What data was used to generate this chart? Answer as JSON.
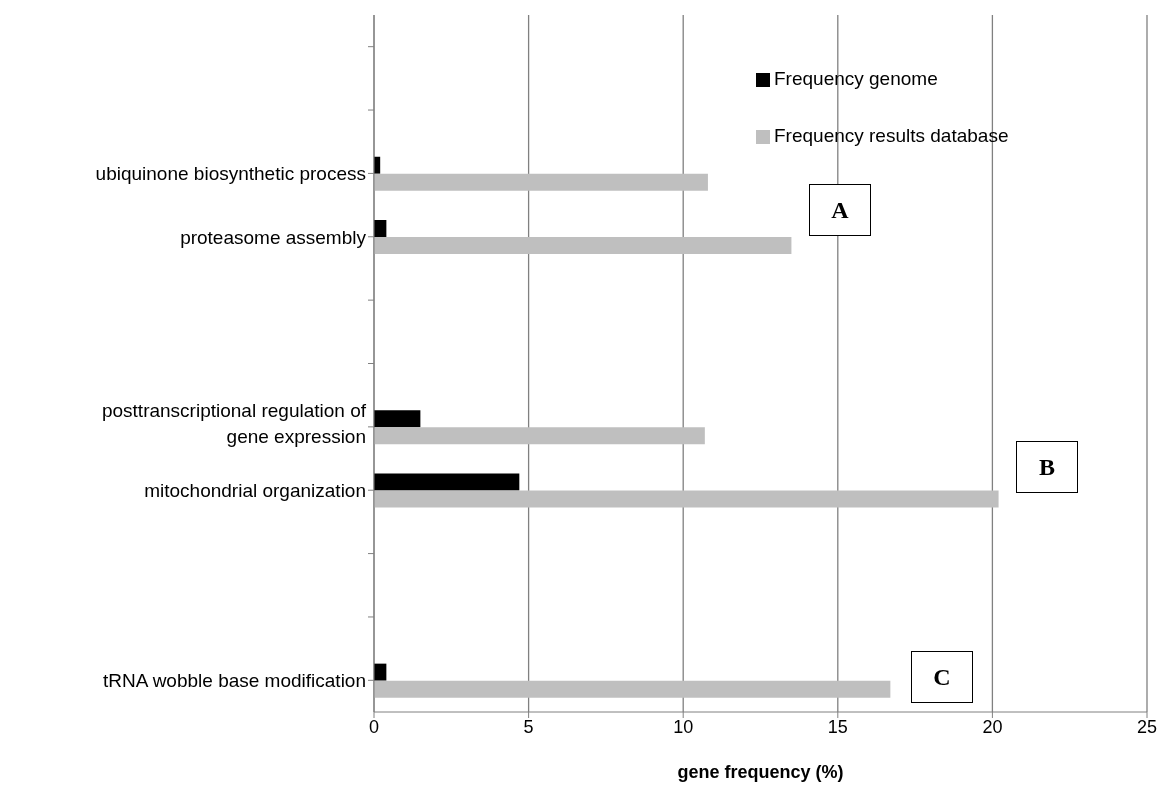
{
  "chart_data": {
    "type": "bar",
    "orientation": "horizontal",
    "xlabel": "gene frequency (%)",
    "categories": [
      null,
      null,
      "ubiquinone biosynthetic process",
      "proteasome assembly",
      null,
      null,
      "posttranscriptional regulation of gene expression",
      "mitochondrial organization",
      null,
      null,
      "tRNA wobble base modification"
    ],
    "series": [
      {
        "name": "Frequency genome",
        "color": "#000000",
        "values": [
          null,
          null,
          0.2,
          0.4,
          null,
          null,
          1.5,
          4.7,
          null,
          null,
          0.4
        ]
      },
      {
        "name": "Frequency results database",
        "color": "#bfbfbf",
        "values": [
          null,
          null,
          10.8,
          13.5,
          null,
          null,
          10.7,
          20.2,
          null,
          null,
          16.7
        ]
      }
    ],
    "xlim": [
      0,
      25
    ],
    "xticks": [
      0,
      5,
      10,
      15,
      20,
      25
    ],
    "grid": "x",
    "legend": "top right",
    "annotations": [
      "A",
      "B",
      "C"
    ]
  }
}
